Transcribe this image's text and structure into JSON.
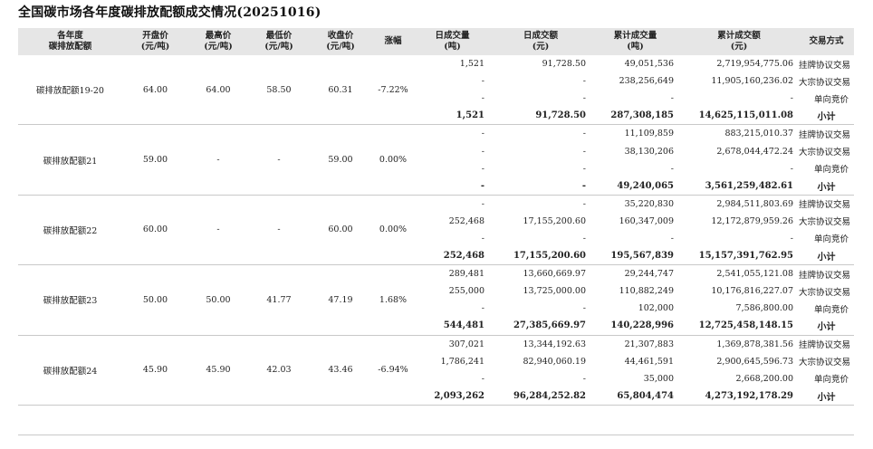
{
  "title": "全国碳市场各年度碳排放配额成交情况(20251016)",
  "headers": [
    [
      "各年度",
      "碳排放配额"
    ],
    [
      "开盘价",
      "(元/吨)"
    ],
    [
      "最高价",
      "(元/吨)"
    ],
    [
      "最低价",
      "(元/吨)"
    ],
    [
      "收盘价",
      "(元/吨)"
    ],
    [
      "涨幅"
    ],
    [
      "日成交量",
      "(吨)"
    ],
    [
      "日成交额",
      "(元)"
    ],
    [
      "累计成交量",
      "(吨)"
    ],
    [
      "累计成交额",
      "(元)"
    ],
    [
      "交易方式"
    ]
  ],
  "groups": [
    {
      "name": "碳排放配额19-20",
      "open": "64.00",
      "high": "64.00",
      "low": "58.50",
      "close": "60.31",
      "change": "-7.22%",
      "rows": [
        {
          "vol": "1,521",
          "amt": "91,728.50",
          "cum_vol": "49,051,536",
          "cum_amt": "2,719,954,775.06",
          "mode": "挂牌协议交易"
        },
        {
          "vol": "-",
          "amt": "-",
          "cum_vol": "238,256,649",
          "cum_amt": "11,905,160,236.02",
          "mode": "大宗协议交易"
        },
        {
          "vol": "-",
          "amt": "-",
          "cum_vol": "-",
          "cum_amt": "-",
          "mode": "单向竞价"
        }
      ],
      "subtotal": {
        "vol": "1,521",
        "amt": "91,728.50",
        "cum_vol": "287,308,185",
        "cum_amt": "14,625,115,011.08",
        "mode": "小计"
      }
    },
    {
      "name": "碳排放配额21",
      "open": "59.00",
      "high": "-",
      "low": "-",
      "close": "59.00",
      "change": "0.00%",
      "rows": [
        {
          "vol": "-",
          "amt": "-",
          "cum_vol": "11,109,859",
          "cum_amt": "883,215,010.37",
          "mode": "挂牌协议交易"
        },
        {
          "vol": "-",
          "amt": "-",
          "cum_vol": "38,130,206",
          "cum_amt": "2,678,044,472.24",
          "mode": "大宗协议交易"
        },
        {
          "vol": "-",
          "amt": "-",
          "cum_vol": "-",
          "cum_amt": "-",
          "mode": "单向竞价"
        }
      ],
      "subtotal": {
        "vol": "-",
        "amt": "-",
        "cum_vol": "49,240,065",
        "cum_amt": "3,561,259,482.61",
        "mode": "小计"
      }
    },
    {
      "name": "碳排放配额22",
      "open": "60.00",
      "high": "-",
      "low": "-",
      "close": "60.00",
      "change": "0.00%",
      "rows": [
        {
          "vol": "-",
          "amt": "-",
          "cum_vol": "35,220,830",
          "cum_amt": "2,984,511,803.69",
          "mode": "挂牌协议交易"
        },
        {
          "vol": "252,468",
          "amt": "17,155,200.60",
          "cum_vol": "160,347,009",
          "cum_amt": "12,172,879,959.26",
          "mode": "大宗协议交易"
        },
        {
          "vol": "-",
          "amt": "-",
          "cum_vol": "-",
          "cum_amt": "-",
          "mode": "单向竞价"
        }
      ],
      "subtotal": {
        "vol": "252,468",
        "amt": "17,155,200.60",
        "cum_vol": "195,567,839",
        "cum_amt": "15,157,391,762.95",
        "mode": "小计"
      }
    },
    {
      "name": "碳排放配额23",
      "open": "50.00",
      "high": "50.00",
      "low": "41.77",
      "close": "47.19",
      "change": "1.68%",
      "rows": [
        {
          "vol": "289,481",
          "amt": "13,660,669.97",
          "cum_vol": "29,244,747",
          "cum_amt": "2,541,055,121.08",
          "mode": "挂牌协议交易"
        },
        {
          "vol": "255,000",
          "amt": "13,725,000.00",
          "cum_vol": "110,882,249",
          "cum_amt": "10,176,816,227.07",
          "mode": "大宗协议交易"
        },
        {
          "vol": "-",
          "amt": "-",
          "cum_vol": "102,000",
          "cum_amt": "7,586,800.00",
          "mode": "单向竞价"
        }
      ],
      "subtotal": {
        "vol": "544,481",
        "amt": "27,385,669.97",
        "cum_vol": "140,228,996",
        "cum_amt": "12,725,458,148.15",
        "mode": "小计"
      }
    },
    {
      "name": "碳排放配额24",
      "open": "45.90",
      "high": "45.90",
      "low": "42.03",
      "close": "43.46",
      "change": "-6.94%",
      "rows": [
        {
          "vol": "307,021",
          "amt": "13,344,192.63",
          "cum_vol": "21,307,883",
          "cum_amt": "1,369,878,381.56",
          "mode": "挂牌协议交易"
        },
        {
          "vol": "1,786,241",
          "amt": "82,940,060.19",
          "cum_vol": "44,461,591",
          "cum_amt": "2,900,645,596.73",
          "mode": "大宗协议交易"
        },
        {
          "vol": "-",
          "amt": "-",
          "cum_vol": "35,000",
          "cum_amt": "2,668,200.00",
          "mode": "单向竞价"
        }
      ],
      "subtotal": {
        "vol": "2,093,262",
        "amt": "96,284,252.82",
        "cum_vol": "65,804,474",
        "cum_amt": "4,273,192,178.29",
        "mode": "小计"
      }
    }
  ]
}
